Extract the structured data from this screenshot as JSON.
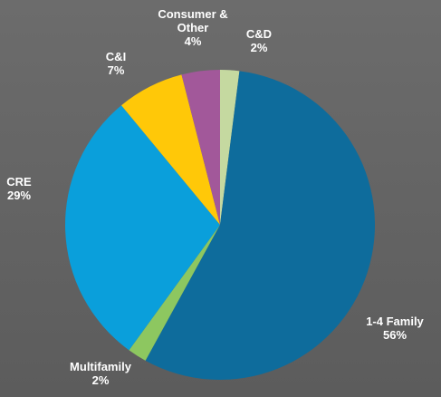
{
  "chart_data": {
    "type": "pie",
    "categories": [
      "C&D",
      "1-4 Family",
      "Multifamily",
      "CRE",
      "C&I",
      "Consumer & Other"
    ],
    "values": [
      2,
      56,
      2,
      29,
      7,
      4
    ],
    "value_labels": [
      "2%",
      "56%",
      "2%",
      "29%",
      "7%",
      "4%"
    ],
    "colors": [
      "#c5d9a0",
      "#0e6c9c",
      "#8dc760",
      "#0a9fdb",
      "#ffc808",
      "#a2589a"
    ]
  }
}
